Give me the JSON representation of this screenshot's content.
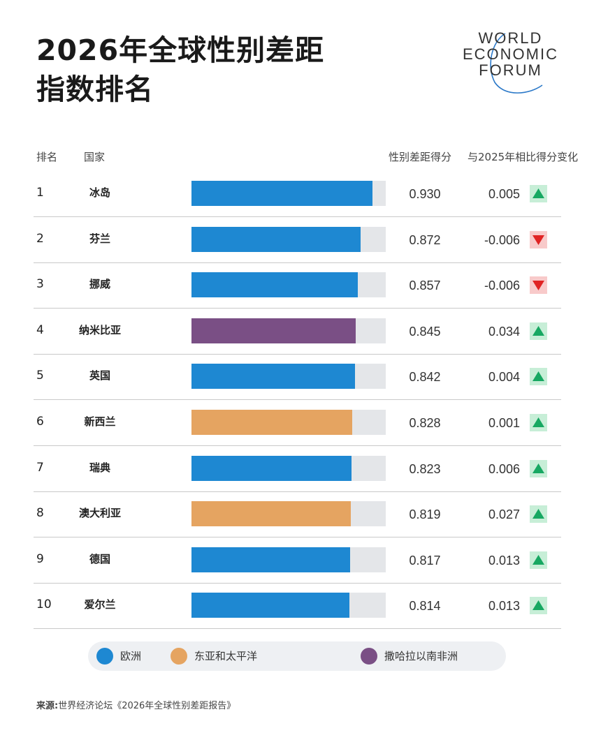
{
  "title": {
    "line1": "2026年全球性别差距",
    "line2": "指数排名"
  },
  "logo": {
    "line1": "WORLD",
    "line2": "ECONOMIC",
    "line3": "FORUM"
  },
  "headers": {
    "rank": "排名",
    "country": "国家",
    "score": "性别差距得分",
    "change": "与2025年相比得分变化"
  },
  "chart_data": {
    "type": "bar",
    "orientation": "horizontal",
    "xlim": [
      0,
      1
    ],
    "categories": [
      "冰岛",
      "芬兰",
      "挪威",
      "纳米比亚",
      "英国",
      "新西兰",
      "瑞典",
      "澳大利亚",
      "德国",
      "爱尔兰"
    ],
    "rows": [
      {
        "rank": "1",
        "country": "冰岛",
        "score": 0.93,
        "score_text": "0.930",
        "change": "0.005",
        "direction": "up",
        "region": "欧洲"
      },
      {
        "rank": "2",
        "country": "芬兰",
        "score": 0.872,
        "score_text": "0.872",
        "change": "-0.006",
        "direction": "down",
        "region": "欧洲"
      },
      {
        "rank": "3",
        "country": "挪威",
        "score": 0.857,
        "score_text": "0.857",
        "change": "-0.006",
        "direction": "down",
        "region": "欧洲"
      },
      {
        "rank": "4",
        "country": "纳米比亚",
        "score": 0.845,
        "score_text": "0.845",
        "change": "0.034",
        "direction": "up",
        "region": "撒哈拉以南非洲"
      },
      {
        "rank": "5",
        "country": "英国",
        "score": 0.842,
        "score_text": "0.842",
        "change": "0.004",
        "direction": "up",
        "region": "欧洲"
      },
      {
        "rank": "6",
        "country": "新西兰",
        "score": 0.828,
        "score_text": "0.828",
        "change": "0.001",
        "direction": "up",
        "region": "东亚和太平洋"
      },
      {
        "rank": "7",
        "country": "瑞典",
        "score": 0.823,
        "score_text": "0.823",
        "change": "0.006",
        "direction": "up",
        "region": "欧洲"
      },
      {
        "rank": "8",
        "country": "澳大利亚",
        "score": 0.819,
        "score_text": "0.819",
        "change": "0.027",
        "direction": "up",
        "region": "东亚和太平洋"
      },
      {
        "rank": "9",
        "country": "德国",
        "score": 0.817,
        "score_text": "0.817",
        "change": "0.013",
        "direction": "up",
        "region": "欧洲"
      },
      {
        "rank": "10",
        "country": "爱尔兰",
        "score": 0.814,
        "score_text": "0.814",
        "change": "0.013",
        "direction": "up",
        "region": "欧洲"
      }
    ],
    "legend": [
      {
        "name": "欧洲",
        "color": "#1e88d2"
      },
      {
        "name": "东亚和太平洋",
        "color": "#e5a461"
      },
      {
        "name": "撒哈拉以南非洲",
        "color": "#7a4f85"
      }
    ],
    "legend_placement": "bottom"
  },
  "colors": {
    "up": "#17a862",
    "down": "#e02424",
    "track": "#e4e6e9"
  },
  "source": {
    "label": "来源:",
    "text": "世界经济论坛《2026年全球性别差距报告》"
  }
}
